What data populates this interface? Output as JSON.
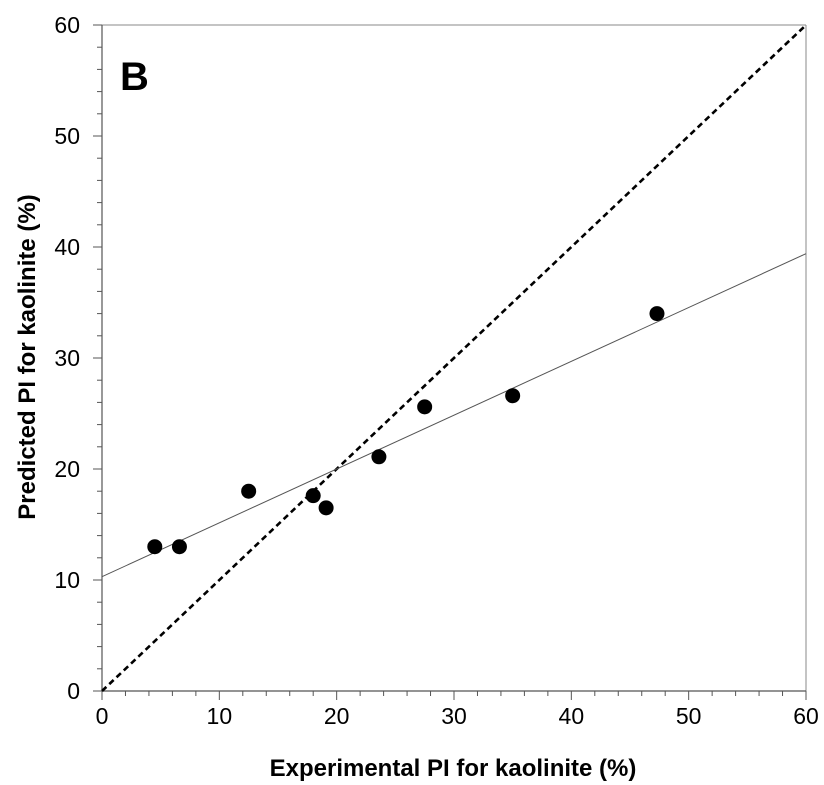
{
  "chart_data": {
    "type": "scatter",
    "panel_label": "B",
    "xlabel": "Experimental PI for kaolinite (%)",
    "ylabel": "Predicted PI for kaolinite  (%)",
    "xlim": [
      0,
      60
    ],
    "ylim": [
      0,
      60
    ],
    "x_ticks": [
      "0",
      "10",
      "20",
      "30",
      "40",
      "50",
      "60"
    ],
    "y_ticks": [
      "0",
      "10",
      "20",
      "30",
      "40",
      "50",
      "60"
    ],
    "grid": false,
    "legend": "none",
    "points": [
      {
        "x": 4.5,
        "y": 13.0
      },
      {
        "x": 6.6,
        "y": 13.0
      },
      {
        "x": 12.5,
        "y": 18.0
      },
      {
        "x": 18.0,
        "y": 17.6
      },
      {
        "x": 19.1,
        "y": 16.5
      },
      {
        "x": 23.6,
        "y": 21.1
      },
      {
        "x": 27.5,
        "y": 25.6
      },
      {
        "x": 35.0,
        "y": 26.6
      },
      {
        "x": 47.3,
        "y": 34.0
      }
    ],
    "trend_line": {
      "style": "solid",
      "intercept": 10.3,
      "slope": 0.485
    },
    "identity_line": {
      "style": "dashed",
      "from": [
        0,
        0
      ],
      "to": [
        60,
        60
      ]
    },
    "colors": {
      "points": "#000000",
      "trend": "#555555",
      "identity": "#000000",
      "frame": "#888888"
    }
  }
}
